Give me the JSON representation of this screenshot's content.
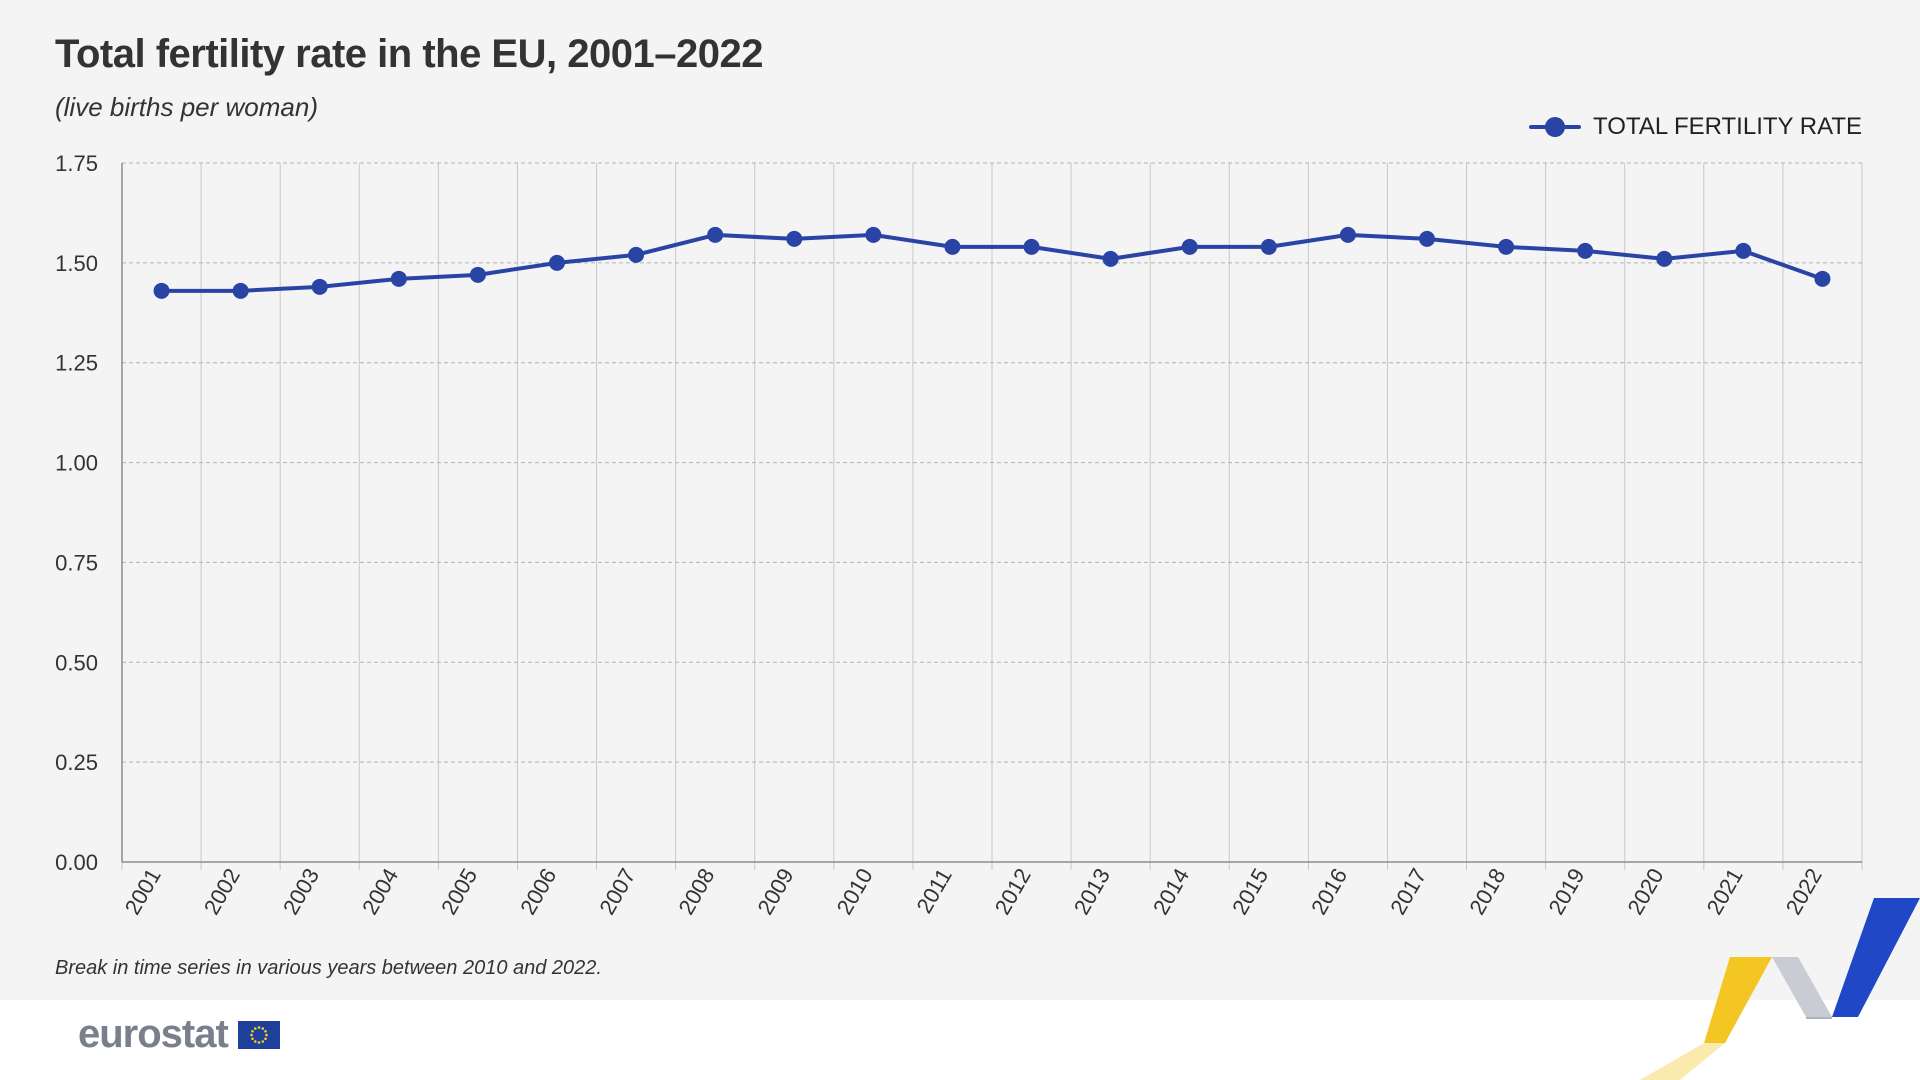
{
  "header": {
    "title": "Total fertility rate in the EU, 2001–2022",
    "subtitle": "(live births per woman)"
  },
  "legend": {
    "label": "TOTAL FERTILITY RATE",
    "position": "top-right"
  },
  "footer": {
    "footnote": "Break in time series in various years between 2010 and 2022.",
    "brand": "eurostat"
  },
  "colors": {
    "series": "#2a44a6",
    "background": "#f4f4f4",
    "grid": "#b4b4b4",
    "text": "#333333",
    "brand_text": "#7a7f8c",
    "eu_blue": "#1f3f9b",
    "eu_yellow": "#f5d31a",
    "deco_yellow": "#f3c318",
    "deco_blue": "#1f47c6"
  },
  "chart_data": {
    "type": "line",
    "title": "Total fertility rate in the EU, 2001–2022",
    "subtitle": "(live births per woman)",
    "xlabel": "",
    "ylabel": "",
    "x": [
      "2001",
      "2002",
      "2003",
      "2004",
      "2005",
      "2006",
      "2007",
      "2008",
      "2009",
      "2010",
      "2011",
      "2012",
      "2013",
      "2014",
      "2015",
      "2016",
      "2017",
      "2018",
      "2019",
      "2020",
      "2021",
      "2022"
    ],
    "series": [
      {
        "name": "TOTAL FERTILITY RATE",
        "values": [
          1.43,
          1.43,
          1.44,
          1.46,
          1.47,
          1.5,
          1.52,
          1.57,
          1.56,
          1.57,
          1.54,
          1.54,
          1.51,
          1.54,
          1.54,
          1.57,
          1.56,
          1.54,
          1.53,
          1.51,
          1.53,
          1.46
        ]
      }
    ],
    "yticks": [
      "0.00",
      "0.25",
      "0.50",
      "0.75",
      "1.00",
      "1.25",
      "1.50",
      "1.75"
    ],
    "ylim": [
      0,
      1.75
    ],
    "grid": true,
    "legend": "top-right"
  }
}
